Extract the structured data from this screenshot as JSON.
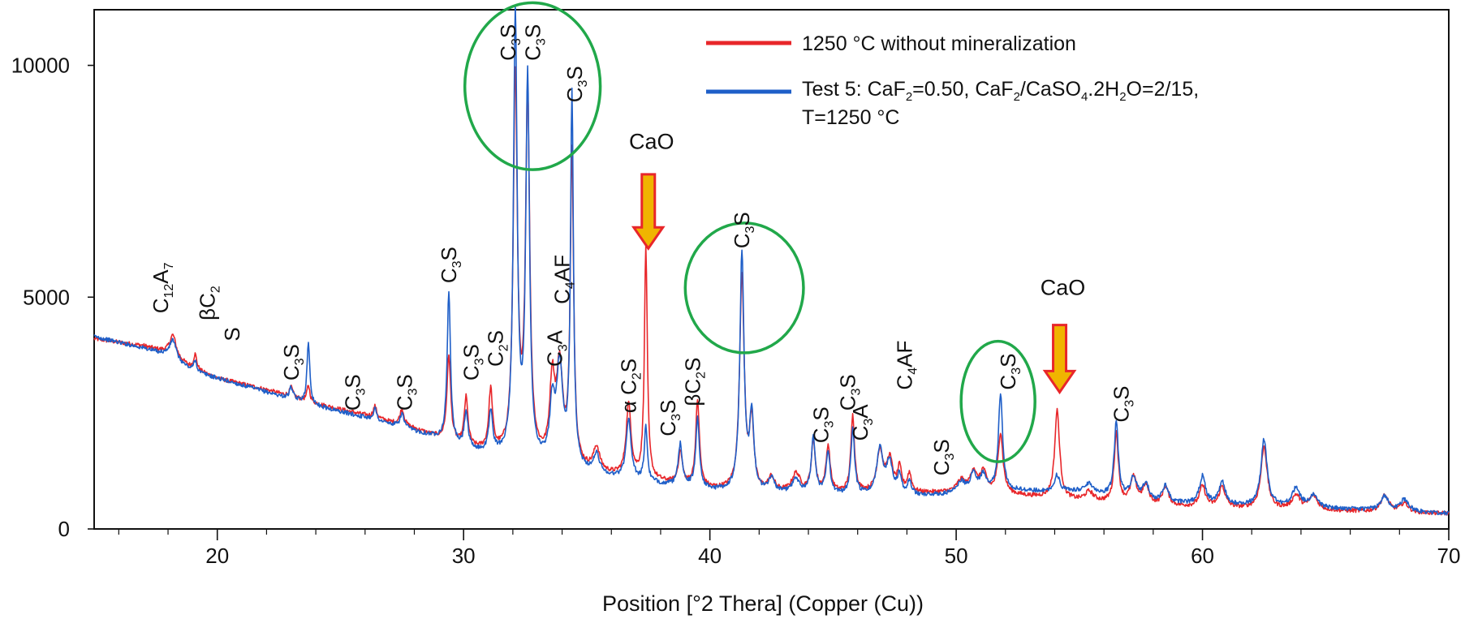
{
  "chart_data": {
    "type": "line",
    "xlabel": "Position [°2 Thera] (Copper (Cu))",
    "ylabel": "",
    "xlim": [
      15,
      70
    ],
    "ylim": [
      0,
      11200
    ],
    "x_ticks": [
      20,
      30,
      40,
      50,
      60,
      70
    ],
    "y_ticks": [
      0,
      5000,
      10000
    ],
    "grid": false,
    "legend_position": "top-right",
    "legend": [
      {
        "text": "1250 °C without mineralization",
        "color": "#e8262a"
      },
      {
        "main": "Test 5: CaF",
        "sub1": "2",
        "mid": "=0.50, CaF",
        "sub2": "2",
        "mid2": "/CaSO",
        "sub3": "4",
        "end": ".2H",
        "sub4": "2",
        "end2": "O=2/15,",
        "line2": "T=1250 °C",
        "color": "#1f5fc8"
      }
    ],
    "series": [
      {
        "name": "1250 °C without mineralization",
        "color": "#e8262a",
        "baseline": [
          [
            15,
            4100
          ],
          [
            17,
            3950
          ],
          [
            18,
            3800
          ],
          [
            19,
            3450
          ],
          [
            20,
            3250
          ],
          [
            22,
            3000
          ],
          [
            24,
            2700
          ],
          [
            26,
            2450
          ],
          [
            28,
            2150
          ],
          [
            29,
            1950
          ],
          [
            30,
            1750
          ],
          [
            32,
            1550
          ],
          [
            34,
            1350
          ],
          [
            36,
            1150
          ],
          [
            38,
            1000
          ],
          [
            40,
            850
          ],
          [
            42,
            780
          ],
          [
            45,
            760
          ],
          [
            48,
            760
          ],
          [
            50,
            780
          ],
          [
            52,
            740
          ],
          [
            55,
            600
          ],
          [
            58,
            500
          ],
          [
            60,
            460
          ],
          [
            63,
            420
          ],
          [
            66,
            380
          ],
          [
            68,
            350
          ],
          [
            70,
            330
          ]
        ],
        "peaks": [
          [
            18.2,
            450,
            0.15
          ],
          [
            19.1,
            330,
            0.08
          ],
          [
            23.0,
            200,
            0.08
          ],
          [
            23.7,
            350,
            0.07
          ],
          [
            26.4,
            250,
            0.08
          ],
          [
            27.5,
            350,
            0.1
          ],
          [
            29.4,
            1850,
            0.09
          ],
          [
            30.1,
            1050,
            0.09
          ],
          [
            31.1,
            1300,
            0.09
          ],
          [
            32.1,
            8100,
            0.1
          ],
          [
            32.6,
            7800,
            0.1
          ],
          [
            33.6,
            1650,
            0.12
          ],
          [
            33.9,
            2000,
            0.15
          ],
          [
            34.4,
            6700,
            0.08
          ],
          [
            35.4,
            500,
            0.15
          ],
          [
            36.7,
            1550,
            0.12
          ],
          [
            37.4,
            5000,
            0.07
          ],
          [
            38.8,
            700,
            0.1
          ],
          [
            39.5,
            1850,
            0.09
          ],
          [
            41.3,
            4650,
            0.11
          ],
          [
            41.7,
            1500,
            0.1
          ],
          [
            42.5,
            300,
            0.15
          ],
          [
            43.5,
            400,
            0.2
          ],
          [
            44.2,
            1100,
            0.1
          ],
          [
            44.8,
            1000,
            0.1
          ],
          [
            45.8,
            1650,
            0.09
          ],
          [
            46.9,
            900,
            0.15
          ],
          [
            47.3,
            700,
            0.15
          ],
          [
            47.7,
            500,
            0.1
          ],
          [
            48.1,
            400,
            0.1
          ],
          [
            50.2,
            250,
            0.2
          ],
          [
            50.7,
            450,
            0.15
          ],
          [
            51.1,
            450,
            0.15
          ],
          [
            51.8,
            1300,
            0.12
          ],
          [
            54.1,
            1900,
            0.12
          ],
          [
            55.4,
            200,
            0.2
          ],
          [
            56.5,
            1500,
            0.1
          ],
          [
            57.2,
            550,
            0.15
          ],
          [
            57.7,
            400,
            0.15
          ],
          [
            58.5,
            400,
            0.15
          ],
          [
            60.0,
            450,
            0.15
          ],
          [
            60.8,
            450,
            0.15
          ],
          [
            62.5,
            1350,
            0.15
          ],
          [
            63.8,
            300,
            0.2
          ],
          [
            64.5,
            300,
            0.2
          ],
          [
            67.4,
            350,
            0.2
          ],
          [
            68.2,
            200,
            0.2
          ]
        ]
      },
      {
        "name": "Test 5: CaF2=0.50, CaF2/CaSO4.2H2O=2/15, T=1250 °C",
        "color": "#1f5fc8",
        "baseline": [
          [
            15,
            4150
          ],
          [
            17,
            3900
          ],
          [
            18,
            3750
          ],
          [
            19,
            3400
          ],
          [
            20,
            3250
          ],
          [
            22,
            2950
          ],
          [
            24,
            2650
          ],
          [
            26,
            2400
          ],
          [
            28,
            2100
          ],
          [
            29,
            1950
          ],
          [
            30,
            1700
          ],
          [
            32,
            1500
          ],
          [
            34,
            1300
          ],
          [
            36,
            1100
          ],
          [
            38,
            950
          ],
          [
            40,
            820
          ],
          [
            42,
            760
          ],
          [
            45,
            720
          ],
          [
            48,
            700
          ],
          [
            50,
            740
          ],
          [
            52,
            820
          ],
          [
            55,
            800
          ],
          [
            58,
            580
          ],
          [
            60,
            520
          ],
          [
            63,
            470
          ],
          [
            66,
            420
          ],
          [
            68,
            380
          ],
          [
            70,
            330
          ]
        ],
        "peaks": [
          [
            18.2,
            400,
            0.15
          ],
          [
            19.1,
            250,
            0.08
          ],
          [
            23.0,
            250,
            0.08
          ],
          [
            23.7,
            1300,
            0.07
          ],
          [
            26.4,
            250,
            0.08
          ],
          [
            27.5,
            300,
            0.1
          ],
          [
            29.4,
            3250,
            0.08
          ],
          [
            30.1,
            800,
            0.09
          ],
          [
            31.1,
            900,
            0.09
          ],
          [
            32.1,
            9500,
            0.09
          ],
          [
            32.6,
            8200,
            0.09
          ],
          [
            33.6,
            1200,
            0.12
          ],
          [
            33.9,
            2100,
            0.15
          ],
          [
            34.4,
            8000,
            0.07
          ],
          [
            35.4,
            400,
            0.15
          ],
          [
            36.7,
            1300,
            0.12
          ],
          [
            37.4,
            1200,
            0.07
          ],
          [
            38.8,
            900,
            0.1
          ],
          [
            39.5,
            1500,
            0.09
          ],
          [
            41.3,
            5150,
            0.1
          ],
          [
            41.7,
            1650,
            0.1
          ],
          [
            42.5,
            300,
            0.15
          ],
          [
            43.5,
            300,
            0.2
          ],
          [
            44.2,
            1200,
            0.1
          ],
          [
            44.8,
            900,
            0.1
          ],
          [
            45.8,
            1400,
            0.09
          ],
          [
            46.9,
            1000,
            0.15
          ],
          [
            47.3,
            700,
            0.15
          ],
          [
            47.7,
            400,
            0.1
          ],
          [
            48.1,
            300,
            0.1
          ],
          [
            50.2,
            250,
            0.2
          ],
          [
            50.7,
            400,
            0.15
          ],
          [
            51.1,
            350,
            0.15
          ],
          [
            51.8,
            2100,
            0.1
          ],
          [
            54.1,
            350,
            0.12
          ],
          [
            55.4,
            200,
            0.2
          ],
          [
            56.5,
            1600,
            0.1
          ],
          [
            57.2,
            450,
            0.15
          ],
          [
            57.7,
            350,
            0.15
          ],
          [
            58.5,
            350,
            0.15
          ],
          [
            60.0,
            600,
            0.15
          ],
          [
            60.8,
            500,
            0.15
          ],
          [
            62.5,
            1450,
            0.15
          ],
          [
            63.8,
            400,
            0.2
          ],
          [
            64.5,
            250,
            0.2
          ],
          [
            67.4,
            300,
            0.2
          ],
          [
            68.2,
            250,
            0.2
          ]
        ]
      }
    ],
    "phase_labels": [
      {
        "x": 18.0,
        "y": 4650,
        "rotate": -90,
        "parts": [
          [
            "C",
            ""
          ],
          [
            "12",
            "sub"
          ],
          [
            "A",
            ""
          ],
          [
            "7",
            "sub"
          ]
        ]
      },
      {
        "x": 19.9,
        "y": 4500,
        "rotate": -90,
        "parts": [
          [
            "βC",
            ""
          ],
          [
            "2",
            "sub"
          ]
        ]
      },
      {
        "x": 20.9,
        "y": 4050,
        "rotate": -90,
        "parts": [
          [
            "S",
            ""
          ]
        ]
      },
      {
        "x": 23.3,
        "y": 3200,
        "rotate": -90,
        "parts": [
          [
            "C",
            ""
          ],
          [
            "3",
            "sub"
          ],
          [
            "S",
            ""
          ]
        ]
      },
      {
        "x": 25.8,
        "y": 2550,
        "rotate": -90,
        "parts": [
          [
            "C",
            ""
          ],
          [
            "3",
            "sub"
          ],
          [
            "S",
            ""
          ]
        ]
      },
      {
        "x": 27.9,
        "y": 2550,
        "rotate": -90,
        "parts": [
          [
            "C",
            ""
          ],
          [
            "3",
            "sub"
          ],
          [
            "S",
            ""
          ]
        ]
      },
      {
        "x": 29.7,
        "y": 5300,
        "rotate": -90,
        "parts": [
          [
            "C",
            ""
          ],
          [
            "3",
            "sub"
          ],
          [
            "S",
            ""
          ]
        ]
      },
      {
        "x": 30.6,
        "y": 3200,
        "rotate": -90,
        "parts": [
          [
            "C",
            ""
          ],
          [
            "3",
            "sub"
          ],
          [
            "S",
            ""
          ]
        ]
      },
      {
        "x": 31.6,
        "y": 3500,
        "rotate": -90,
        "parts": [
          [
            "C",
            ""
          ],
          [
            "2",
            "sub"
          ],
          [
            "S",
            ""
          ]
        ]
      },
      {
        "x": 32.1,
        "y": 10100,
        "rotate": -90,
        "parts": [
          [
            "C",
            ""
          ],
          [
            "3",
            "sub"
          ],
          [
            "S",
            ""
          ]
        ]
      },
      {
        "x": 33.1,
        "y": 10100,
        "rotate": -90,
        "parts": [
          [
            "C",
            ""
          ],
          [
            "3",
            "sub"
          ],
          [
            "S",
            ""
          ]
        ]
      },
      {
        "x": 34.8,
        "y": 9200,
        "rotate": -90,
        "parts": [
          [
            "C",
            ""
          ],
          [
            "3",
            "sub"
          ],
          [
            "S",
            ""
          ]
        ]
      },
      {
        "x": 34.0,
        "y": 3500,
        "rotate": -90,
        "parts": [
          [
            "C",
            ""
          ],
          [
            "3",
            "sub"
          ],
          [
            "A",
            ""
          ]
        ]
      },
      {
        "x": 34.3,
        "y": 4850,
        "rotate": -90,
        "parts": [
          [
            "C",
            ""
          ],
          [
            "4",
            "sub"
          ],
          [
            "AF",
            ""
          ]
        ]
      },
      {
        "x": 37.0,
        "y": 2500,
        "rotate": -90,
        "parts": [
          [
            "α C",
            ""
          ],
          [
            "2",
            "sub"
          ],
          [
            "S",
            ""
          ]
        ]
      },
      {
        "x": 38.6,
        "y": 2000,
        "rotate": -90,
        "parts": [
          [
            "C",
            ""
          ],
          [
            "3",
            "sub"
          ],
          [
            "S",
            ""
          ]
        ]
      },
      {
        "x": 39.6,
        "y": 2650,
        "rotate": -90,
        "parts": [
          [
            "βC",
            ""
          ],
          [
            "2",
            "sub"
          ],
          [
            "S",
            ""
          ]
        ]
      },
      {
        "x": 41.6,
        "y": 6050,
        "rotate": -90,
        "parts": [
          [
            "C",
            ""
          ],
          [
            "3",
            "sub"
          ],
          [
            "S",
            ""
          ]
        ]
      },
      {
        "x": 44.8,
        "y": 1850,
        "rotate": -90,
        "parts": [
          [
            "C",
            ""
          ],
          [
            "3",
            "sub"
          ],
          [
            "S",
            ""
          ]
        ]
      },
      {
        "x": 45.9,
        "y": 2550,
        "rotate": -90,
        "parts": [
          [
            "C",
            ""
          ],
          [
            "3",
            "sub"
          ],
          [
            "S",
            ""
          ]
        ]
      },
      {
        "x": 46.4,
        "y": 1900,
        "rotate": -90,
        "parts": [
          [
            "C",
            ""
          ],
          [
            "3",
            "sub"
          ],
          [
            "A",
            ""
          ]
        ]
      },
      {
        "x": 48.2,
        "y": 3000,
        "rotate": -90,
        "parts": [
          [
            "C",
            ""
          ],
          [
            "4",
            "sub"
          ],
          [
            "AF",
            ""
          ]
        ]
      },
      {
        "x": 49.7,
        "y": 1150,
        "rotate": -90,
        "parts": [
          [
            "C",
            ""
          ],
          [
            "3",
            "sub"
          ],
          [
            "S",
            ""
          ]
        ]
      },
      {
        "x": 52.4,
        "y": 3000,
        "rotate": -90,
        "parts": [
          [
            "C",
            ""
          ],
          [
            "3",
            "sub"
          ],
          [
            "S",
            ""
          ]
        ]
      },
      {
        "x": 57.0,
        "y": 2300,
        "rotate": -90,
        "parts": [
          [
            "C",
            ""
          ],
          [
            "3",
            "sub"
          ],
          [
            "S",
            ""
          ]
        ]
      }
    ],
    "callouts": [
      {
        "text": "CaO",
        "x": 37.5,
        "y_text": 8200,
        "y_arrow_top": 7650,
        "y_arrow_tip": 6050,
        "color": "#f0b400",
        "outline": "#e8262a"
      },
      {
        "text": "CaO",
        "x": 54.2,
        "y_text": 5050,
        "y_arrow_top": 4400,
        "y_arrow_tip": 2950,
        "color": "#f0b400",
        "outline": "#e8262a"
      }
    ],
    "highlight_ellipses": [
      {
        "cx": 32.8,
        "cy": 9550,
        "rx": 2.75,
        "ry": 1800,
        "color": "#21a84a"
      },
      {
        "cx": 41.4,
        "cy": 5200,
        "rx": 2.4,
        "ry": 1400,
        "color": "#21a84a"
      },
      {
        "cx": 51.7,
        "cy": 2750,
        "rx": 1.5,
        "ry": 1300,
        "color": "#21a84a"
      }
    ]
  }
}
